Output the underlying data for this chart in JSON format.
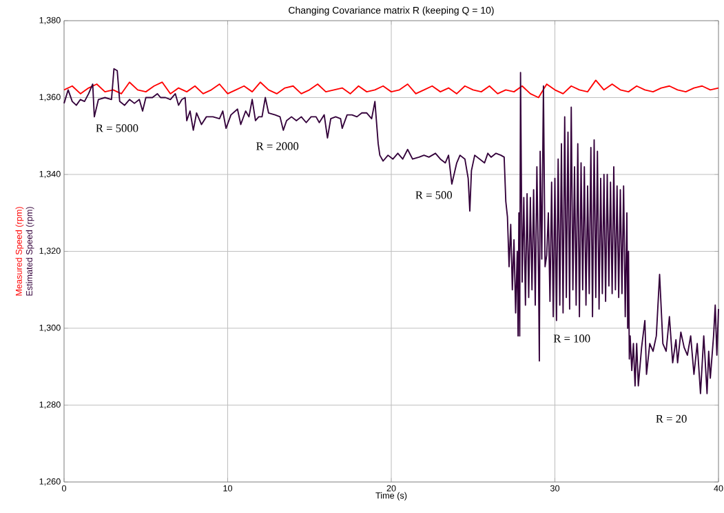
{
  "chart_data": {
    "type": "line",
    "title": "Changing Covariance matrix R (keeping Q = 10)",
    "xlabel": "Time (s)",
    "xlim": [
      0,
      40
    ],
    "xticks": [
      0,
      10,
      20,
      30,
      40
    ],
    "ylim": [
      1260,
      1380
    ],
    "yticks": [
      {
        "value": 1260,
        "label": "1,260"
      },
      {
        "value": 1280,
        "label": "1,280"
      },
      {
        "value": 1300,
        "label": "1,300"
      },
      {
        "value": 1320,
        "label": "1,320"
      },
      {
        "value": 1340,
        "label": "1,340"
      },
      {
        "value": 1360,
        "label": "1,360"
      },
      {
        "value": 1380,
        "label": "1,380"
      }
    ],
    "grid": true,
    "marker": "none",
    "line_style": "solid",
    "series": [
      {
        "name": "Measured Speed (rpm)",
        "color": "#ff0000",
        "x": [
          0,
          0.5,
          1,
          1.5,
          2,
          2.5,
          3,
          3.5,
          4,
          4.5,
          5,
          5.5,
          6,
          6.5,
          7,
          7.5,
          8,
          8.5,
          9,
          9.5,
          10,
          10.5,
          11,
          11.5,
          12,
          12.5,
          13,
          13.5,
          14,
          14.5,
          15,
          15.5,
          16,
          16.5,
          17,
          17.5,
          18,
          18.5,
          19,
          19.5,
          20,
          20.5,
          21,
          21.5,
          22,
          22.5,
          23,
          23.5,
          24,
          24.5,
          25,
          25.5,
          26,
          26.5,
          27,
          27.5,
          28,
          28.5,
          29,
          29.5,
          30,
          30.5,
          31,
          31.5,
          32,
          32.5,
          33,
          33.5,
          34,
          34.5,
          35,
          35.5,
          36,
          36.5,
          37,
          37.5,
          38,
          38.5,
          39,
          39.5,
          40
        ],
        "values": [
          1362,
          1363,
          1361,
          1362.5,
          1363.5,
          1361.5,
          1362,
          1361,
          1364,
          1362,
          1361.5,
          1363,
          1364,
          1361,
          1362.5,
          1361.5,
          1363,
          1361,
          1362,
          1363.5,
          1361,
          1362,
          1363,
          1361.5,
          1364,
          1362,
          1361,
          1362.5,
          1363,
          1361,
          1362,
          1363.5,
          1361.5,
          1362,
          1362.5,
          1361,
          1363,
          1361.5,
          1362,
          1363,
          1361.5,
          1362,
          1363.5,
          1361,
          1362,
          1363,
          1361.5,
          1362.5,
          1361,
          1363,
          1362,
          1361.5,
          1363,
          1361,
          1362,
          1361.5,
          1363,
          1361,
          1360,
          1363.5,
          1362,
          1361,
          1363,
          1362,
          1361.5,
          1364.5,
          1362,
          1363.5,
          1362,
          1361.5,
          1363,
          1362,
          1361.5,
          1362.5,
          1363,
          1362,
          1361.5,
          1362.5,
          1363,
          1362,
          1362.5
        ]
      },
      {
        "name": "Estimated Speed  (rpm)",
        "color": "#33003a",
        "x": [
          0,
          0.25,
          0.5,
          0.75,
          1.0,
          1.25,
          1.5,
          1.75,
          1.85,
          2.1,
          2.5,
          2.9,
          3.05,
          3.25,
          3.4,
          3.7,
          4.0,
          4.3,
          4.6,
          4.8,
          5.0,
          5.4,
          5.7,
          5.9,
          6.2,
          6.5,
          6.8,
          7.0,
          7.2,
          7.4,
          7.5,
          7.7,
          7.9,
          8.1,
          8.4,
          8.7,
          9.1,
          9.5,
          9.7,
          9.9,
          10.2,
          10.6,
          10.8,
          11.1,
          11.3,
          11.5,
          11.7,
          11.9,
          12.1,
          12.3,
          12.5,
          12.9,
          13.2,
          13.4,
          13.6,
          13.9,
          14.2,
          14.5,
          14.8,
          15.1,
          15.4,
          15.6,
          15.9,
          16.1,
          16.3,
          16.6,
          16.9,
          17.0,
          17.3,
          17.6,
          17.9,
          18.2,
          18.5,
          18.8,
          19.0,
          19.2,
          19.3,
          19.5,
          19.8,
          20.1,
          20.4,
          20.7,
          21.0,
          21.3,
          21.7,
          22.0,
          22.3,
          22.7,
          23.0,
          23.3,
          23.5,
          23.7,
          24.0,
          24.2,
          24.5,
          24.7,
          24.8,
          24.9,
          25.1,
          25.4,
          25.7,
          25.9,
          26.1,
          26.4,
          26.7,
          26.9,
          27.0,
          27.1,
          27.2,
          27.3,
          27.4,
          27.5,
          27.6,
          27.7,
          27.75,
          27.8,
          27.85,
          27.9,
          28.0,
          28.1,
          28.2,
          28.3,
          28.4,
          28.5,
          28.6,
          28.7,
          28.8,
          28.9,
          29.0,
          29.05,
          29.1,
          29.2,
          29.3,
          29.4,
          29.5,
          29.6,
          29.7,
          29.8,
          29.9,
          30.0,
          30.1,
          30.2,
          30.3,
          30.4,
          30.5,
          30.6,
          30.7,
          30.8,
          30.9,
          31.0,
          31.1,
          31.2,
          31.3,
          31.4,
          31.5,
          31.6,
          31.7,
          31.8,
          31.9,
          32.0,
          32.1,
          32.2,
          32.3,
          32.4,
          32.5,
          32.6,
          32.7,
          32.8,
          32.9,
          33.0,
          33.1,
          33.2,
          33.3,
          33.4,
          33.5,
          33.6,
          33.7,
          33.8,
          33.9,
          34.0,
          34.1,
          34.2,
          34.3,
          34.4,
          34.45,
          34.5,
          34.55,
          34.6,
          34.7,
          34.8,
          34.9,
          35.0,
          35.1,
          35.3,
          35.5,
          35.6,
          35.8,
          36.0,
          36.2,
          36.4,
          36.6,
          36.8,
          37.0,
          37.2,
          37.4,
          37.5,
          37.7,
          37.9,
          38.1,
          38.3,
          38.5,
          38.7,
          38.9,
          39.1,
          39.3,
          39.4,
          39.5,
          39.7,
          39.8,
          39.9,
          40.0
        ],
        "values": [
          1358.5,
          1362,
          1359,
          1358,
          1359.5,
          1359,
          1361,
          1363.5,
          1355,
          1359.5,
          1360,
          1359.5,
          1367.5,
          1367,
          1359,
          1358,
          1359.5,
          1358.5,
          1359.5,
          1356.5,
          1360,
          1360,
          1361,
          1360,
          1360,
          1359.5,
          1361,
          1358,
          1359.5,
          1360,
          1354,
          1356.5,
          1351.5,
          1356,
          1353,
          1355,
          1355,
          1354.5,
          1356.5,
          1352,
          1355.5,
          1357,
          1353,
          1356.5,
          1355,
          1359.5,
          1354,
          1355,
          1355,
          1360,
          1356,
          1355.5,
          1355,
          1351.5,
          1354,
          1355,
          1354,
          1355,
          1353.5,
          1355,
          1355,
          1353.5,
          1355.5,
          1349.5,
          1354.5,
          1355,
          1354.5,
          1352,
          1355.5,
          1355.5,
          1355,
          1356,
          1356,
          1354.5,
          1359,
          1348,
          1345,
          1343.5,
          1345,
          1344,
          1345.5,
          1344,
          1346.5,
          1344,
          1344.5,
          1345,
          1344.5,
          1345.5,
          1344,
          1343,
          1345,
          1337.5,
          1343,
          1345,
          1344,
          1339,
          1330.5,
          1341,
          1345,
          1344,
          1343,
          1345.5,
          1344.5,
          1345.5,
          1345,
          1344.5,
          1333,
          1329,
          1316,
          1327,
          1310,
          1323,
          1304,
          1320,
          1298,
          1330,
          1298,
          1366.5,
          1312,
          1334,
          1306,
          1335,
          1308,
          1334,
          1310,
          1336,
          1306,
          1342,
          1314,
          1291.5,
          1346,
          1318,
          1363,
          1316,
          1319,
          1330,
          1307,
          1338,
          1303,
          1339,
          1302,
          1344,
          1306,
          1348,
          1304,
          1355,
          1308,
          1351,
          1305,
          1357.5,
          1310,
          1342,
          1306,
          1348,
          1303,
          1343,
          1310,
          1342,
          1306,
          1337,
          1309,
          1347,
          1303,
          1349,
          1308,
          1346,
          1305,
          1339,
          1309,
          1340,
          1307,
          1340,
          1311,
          1338,
          1309,
          1342,
          1310,
          1337,
          1308,
          1336,
          1309,
          1337,
          1303,
          1330,
          1300,
          1320,
          1292,
          1298,
          1289,
          1296,
          1285,
          1296,
          1285,
          1295,
          1302,
          1288,
          1296,
          1294,
          1298,
          1314,
          1296,
          1294,
          1303,
          1291,
          1297,
          1291,
          1299,
          1295,
          1293,
          1298,
          1288,
          1296,
          1283,
          1298,
          1283,
          1294,
          1287,
          1298,
          1306,
          1293,
          1305
        ]
      }
    ],
    "annotations": [
      "R = 5000",
      "R = 2000",
      "R = 500",
      "R = 100",
      "R = 20"
    ]
  }
}
